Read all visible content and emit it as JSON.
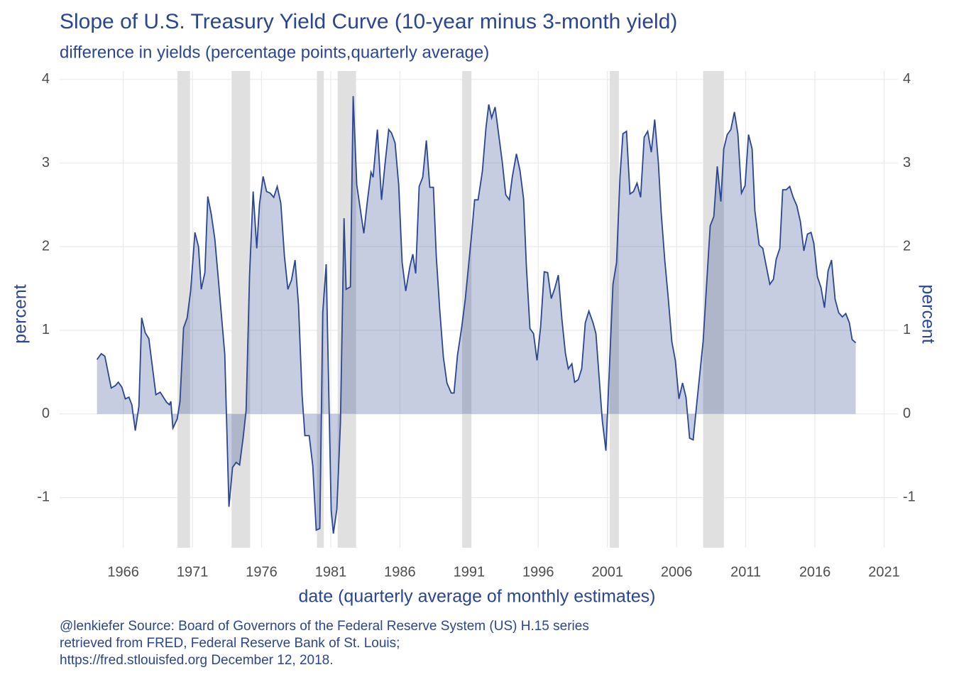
{
  "chart_data": {
    "type": "area",
    "title": "Slope of U.S. Treasury Yield Curve (10-year minus 3-month yield)",
    "subtitle": "difference in yields (percentage points,quarterly average)",
    "x_label": "date (quarterly average of monthly estimates)",
    "y_label": "percent",
    "caption": [
      "@lenkiefer Source: Board of Governors of the Federal Reserve System (US) H.15 series",
      "retrieved from FRED, Federal Reserve Bank of St. Louis;",
      "https://fred.stlouisfed.org December 12, 2018."
    ],
    "color": "#2b4590",
    "grid": true,
    "recession_color": "#e0e0e0",
    "recessions": [
      [
        1969.92,
        1970.83
      ],
      [
        1973.83,
        1975.17
      ],
      [
        1980.0,
        1980.5
      ],
      [
        1981.5,
        1982.83
      ],
      [
        1990.5,
        1991.17
      ],
      [
        2001.17,
        2001.83
      ],
      [
        2007.92,
        2009.42
      ]
    ],
    "x": [
      1964.1,
      1964.41,
      1964.67,
      1965.13,
      1965.44,
      1965.64,
      1965.9,
      1966.15,
      1966.41,
      1966.62,
      1966.87,
      1967.13,
      1967.33,
      1967.59,
      1967.85,
      1968.36,
      1968.67,
      1969.13,
      1969.34,
      1969.44,
      1969.59,
      1969.9,
      1970.1,
      1970.36,
      1970.62,
      1970.87,
      1971.18,
      1971.44,
      1971.64,
      1971.9,
      1972.11,
      1972.36,
      1972.62,
      1972.88,
      1973.34,
      1973.64,
      1973.9,
      1974.16,
      1974.41,
      1974.67,
      1974.88,
      1975.13,
      1975.39,
      1975.65,
      1975.85,
      1976.11,
      1976.36,
      1976.62,
      1976.88,
      1977.13,
      1977.39,
      1977.65,
      1977.9,
      1978.16,
      1978.42,
      1978.67,
      1978.93,
      1979.13,
      1979.44,
      1979.7,
      1979.95,
      1980.21,
      1980.42,
      1980.67,
      1981.03,
      1981.19,
      1981.44,
      1981.7,
      1981.96,
      1982.11,
      1982.42,
      1982.62,
      1982.88,
      1983.39,
      1983.65,
      1983.91,
      1984.06,
      1984.37,
      1984.67,
      1984.93,
      1985.19,
      1985.39,
      1985.65,
      1985.91,
      1986.16,
      1986.42,
      1986.73,
      1986.93,
      1987.14,
      1987.39,
      1987.65,
      1987.91,
      1988.16,
      1988.42,
      1988.63,
      1988.88,
      1989.14,
      1989.4,
      1989.71,
      1989.91,
      1990.16,
      1990.47,
      1990.73,
      1990.93,
      1991.19,
      1991.4,
      1991.65,
      1991.96,
      1992.22,
      1992.42,
      1992.63,
      1992.88,
      1993.14,
      1993.4,
      1993.65,
      1993.91,
      1994.12,
      1994.42,
      1994.68,
      1994.94,
      1995.14,
      1995.4,
      1995.66,
      1995.91,
      1996.17,
      1996.43,
      1996.68,
      1996.94,
      1997.19,
      1997.45,
      1997.71,
      1997.96,
      1998.17,
      1998.43,
      1998.63,
      1998.89,
      1999.14,
      1999.4,
      1999.66,
      1999.96,
      2000.17,
      2000.43,
      2000.63,
      2000.89,
      2001.14,
      2001.4,
      2001.66,
      2001.91,
      2002.12,
      2002.38,
      2002.63,
      2002.89,
      2003.14,
      2003.4,
      2003.66,
      2003.91,
      2004.17,
      2004.42,
      2004.68,
      2004.89,
      2005.14,
      2005.4,
      2005.66,
      2005.91,
      2006.17,
      2006.43,
      2006.68,
      2006.94,
      2007.2,
      2007.45,
      2007.66,
      2007.92,
      2008.17,
      2008.43,
      2008.69,
      2008.94,
      2009.2,
      2009.41,
      2009.66,
      2009.92,
      2010.18,
      2010.43,
      2010.69,
      2010.95,
      2011.2,
      2011.46,
      2011.66,
      2011.97,
      2012.23,
      2012.48,
      2012.74,
      2013.0,
      2013.2,
      2013.46,
      2013.67,
      2013.92,
      2014.18,
      2014.43,
      2014.69,
      2014.95,
      2015.2,
      2015.46,
      2015.72,
      2015.92,
      2016.18,
      2016.44,
      2016.69,
      2016.95,
      2017.2,
      2017.46,
      2017.72,
      2017.98,
      2018.23,
      2018.49,
      2018.69,
      2018.95
    ],
    "values": [
      0.65,
      0.72,
      0.69,
      0.31,
      0.34,
      0.38,
      0.32,
      0.18,
      0.2,
      0.11,
      -0.2,
      0.09,
      1.15,
      0.97,
      0.9,
      0.23,
      0.26,
      0.14,
      0.11,
      0.15,
      -0.17,
      -0.06,
      0.15,
      1.03,
      1.15,
      1.47,
      2.17,
      2.0,
      1.49,
      1.69,
      2.6,
      2.39,
      2.09,
      1.6,
      0.71,
      -1.11,
      -0.64,
      -0.58,
      -0.61,
      -0.28,
      0.04,
      1.66,
      2.66,
      1.98,
      2.51,
      2.84,
      2.66,
      2.64,
      2.59,
      2.72,
      2.52,
      1.89,
      1.49,
      1.6,
      1.84,
      1.3,
      0.22,
      -0.26,
      -0.26,
      -0.62,
      -1.39,
      -1.37,
      1.21,
      1.79,
      -1.15,
      -1.43,
      -1.14,
      -0.11,
      2.34,
      1.49,
      1.52,
      3.8,
      2.74,
      2.16,
      2.55,
      2.89,
      2.83,
      3.4,
      2.56,
      3.0,
      3.4,
      3.36,
      3.24,
      2.74,
      1.81,
      1.47,
      1.77,
      1.91,
      1.68,
      2.72,
      2.83,
      3.27,
      2.71,
      2.71,
      1.88,
      1.24,
      0.68,
      0.37,
      0.25,
      0.25,
      0.7,
      1.04,
      1.38,
      1.72,
      2.16,
      2.56,
      2.56,
      2.9,
      3.42,
      3.7,
      3.54,
      3.67,
      3.34,
      3.01,
      2.62,
      2.56,
      2.83,
      3.11,
      2.91,
      2.57,
      1.77,
      1.02,
      0.96,
      0.64,
      1.04,
      1.7,
      1.69,
      1.38,
      1.5,
      1.66,
      1.13,
      0.73,
      0.54,
      0.6,
      0.38,
      0.41,
      0.54,
      1.09,
      1.23,
      1.09,
      0.96,
      0.37,
      -0.08,
      -0.44,
      0.54,
      1.55,
      1.81,
      2.84,
      3.35,
      3.38,
      2.63,
      2.66,
      2.76,
      2.59,
      3.31,
      3.38,
      3.13,
      3.52,
      3.01,
      2.4,
      1.85,
      1.38,
      0.86,
      0.64,
      0.18,
      0.37,
      0.2,
      -0.29,
      -0.31,
      0.11,
      0.45,
      0.87,
      1.55,
      2.25,
      2.36,
      2.96,
      2.54,
      3.17,
      3.34,
      3.4,
      3.61,
      3.35,
      2.64,
      2.73,
      3.34,
      3.17,
      2.43,
      2.02,
      1.98,
      1.77,
      1.55,
      1.61,
      1.85,
      1.98,
      2.68,
      2.68,
      2.72,
      2.59,
      2.49,
      2.3,
      1.95,
      2.15,
      2.17,
      2.04,
      1.64,
      1.51,
      1.27,
      1.71,
      1.84,
      1.37,
      1.21,
      1.16,
      1.2,
      1.09,
      0.89,
      0.85
    ],
    "xlim": [
      1961.4,
      2022.0
    ],
    "xticks": [
      1966,
      1971,
      1976,
      1981,
      1986,
      1991,
      1996,
      2001,
      2006,
      2011,
      2016,
      2021
    ],
    "ylim": [
      -1.6,
      4.1
    ],
    "yticks": [
      -1,
      0,
      1,
      2,
      3,
      4
    ]
  }
}
